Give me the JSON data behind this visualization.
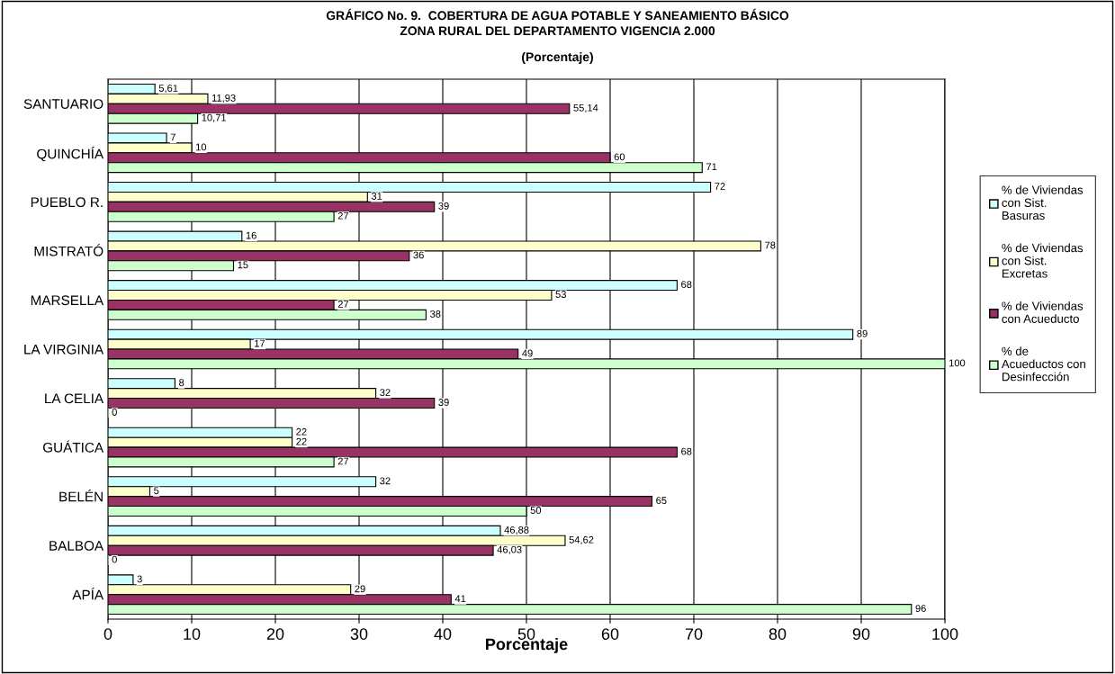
{
  "chart_data": {
    "type": "bar",
    "orientation": "horizontal",
    "title": "GRÁFICO No. 9.  COBERTURA DE AGUA POTABLE Y SANEAMIENTO BÁSICO\nZONA RURAL DEL DEPARTAMENTO VIGENCIA 2.000",
    "subtitle": "(Porcentaje)",
    "xlabel": "Porcentaje",
    "categories": [
      "SANTUARIO",
      "QUINCHÍA",
      "PUEBLO R.",
      "MISTRATÓ",
      "MARSELLA",
      "LA VIRGINIA",
      "LA CELIA",
      "GUÁTICA",
      "BELÉN",
      "BALBOA",
      "APÍA"
    ],
    "series": [
      {
        "name": "% de Viviendas\ncon Sist.\nBasuras",
        "color": "#ccffff",
        "values": [
          5.61,
          7,
          72,
          16,
          68,
          89,
          8,
          22,
          32,
          46.88,
          3
        ],
        "value_labels": [
          "5,61",
          "7",
          "72",
          "16",
          "68",
          "89",
          "8",
          "22",
          "32",
          "46,88",
          "3"
        ]
      },
      {
        "name": "% de Viviendas\ncon Sist.\nExcretas",
        "color": "#ffffcc",
        "values": [
          11.93,
          10,
          31,
          78,
          53,
          17,
          32,
          22,
          5,
          54.62,
          29
        ],
        "value_labels": [
          "11,93",
          "10",
          "31",
          "78",
          "53",
          "17",
          "32",
          "22",
          "5",
          "54,62",
          "29"
        ]
      },
      {
        "name": "% de Viviendas\ncon Acueducto",
        "color": "#993366",
        "values": [
          55.14,
          60,
          39,
          36,
          27,
          49,
          39,
          68,
          65,
          46.03,
          41
        ],
        "value_labels": [
          "55,14",
          "60",
          "39",
          "36",
          "27",
          "49",
          "39",
          "68",
          "65",
          "46,03",
          "41"
        ]
      },
      {
        "name": "% de\nAcueductos con\nDesinfección",
        "color": "#ccffcc",
        "values": [
          10.71,
          71,
          27,
          15,
          38,
          100,
          0,
          27,
          50,
          0,
          96
        ],
        "value_labels": [
          "10,71",
          "71",
          "27",
          "15",
          "38",
          "100",
          "0",
          "27",
          "50",
          "0",
          "96"
        ]
      }
    ],
    "xlim": [
      0,
      100
    ],
    "xticks": [
      0,
      10,
      20,
      30,
      40,
      50,
      60,
      70,
      80,
      90,
      100
    ],
    "grid": "x",
    "legend": "right"
  }
}
